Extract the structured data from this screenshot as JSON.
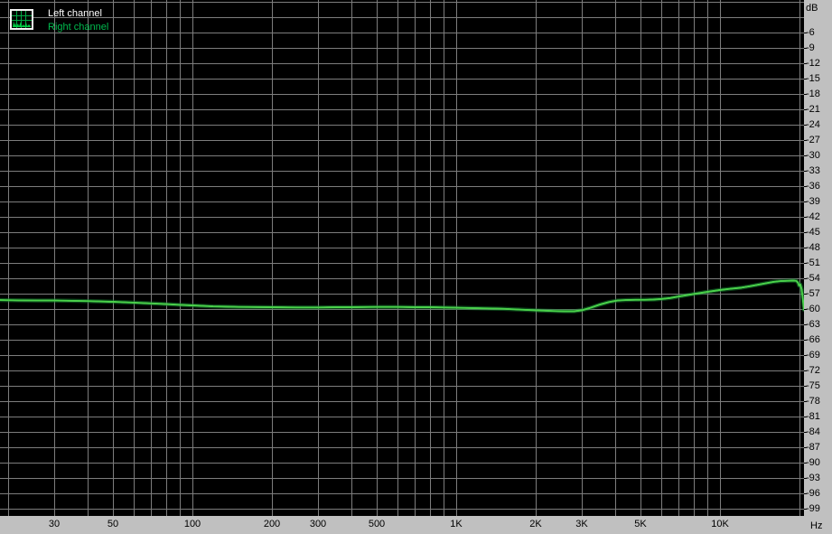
{
  "legend": {
    "items": [
      {
        "label": "Left channel",
        "color": "#ffffff"
      },
      {
        "label": "Right channel",
        "color": "#00bb4e"
      }
    ],
    "icon": "spectrum-thumbnail-icon"
  },
  "axes": {
    "y": {
      "unit_label": "dB",
      "tick_step_db": 3,
      "tick_labels": [
        "-6",
        "-9",
        "-12",
        "-15",
        "-18",
        "-21",
        "-24",
        "-27",
        "-30",
        "-33",
        "-36",
        "-39",
        "-42",
        "-45",
        "-48",
        "-51",
        "-54",
        "-57",
        "-60",
        "-63",
        "-66",
        "-69",
        "-72",
        "-75",
        "-78",
        "-81",
        "-84",
        "-87",
        "-90",
        "-93",
        "-96",
        "-99"
      ]
    },
    "x": {
      "unit_label": "Hz",
      "ticks": [
        {
          "f": 30,
          "label": "30"
        },
        {
          "f": 50,
          "label": "50"
        },
        {
          "f": 100,
          "label": "100"
        },
        {
          "f": 200,
          "label": "200"
        },
        {
          "f": 300,
          "label": "300"
        },
        {
          "f": 500,
          "label": "500"
        },
        {
          "f": 1000,
          "label": "1K"
        },
        {
          "f": 2000,
          "label": "2K"
        },
        {
          "f": 3000,
          "label": "3K"
        },
        {
          "f": 5000,
          "label": "5K"
        },
        {
          "f": 10000,
          "label": "10K"
        }
      ]
    }
  },
  "grid": {
    "v_freqs": [
      20,
      30,
      40,
      50,
      60,
      70,
      80,
      90,
      100,
      200,
      300,
      400,
      500,
      600,
      700,
      800,
      900,
      1000,
      2000,
      3000,
      4000,
      5000,
      6000,
      7000,
      8000,
      9000,
      10000,
      20000
    ],
    "h_lines_db_from": 0,
    "h_lines_db_to": -99,
    "color": "#7d7d7d"
  },
  "colors": {
    "plot_background": "#000000",
    "axis_strip": "#c0c0c0",
    "grid": "#7d7d7d",
    "label_text": "#000000",
    "left_channel": "#ffffff",
    "right_channel_core": "#4ad24a",
    "right_channel_glow": "#147d2d"
  },
  "chart_data": {
    "type": "line",
    "x_axis": {
      "label": "Hz",
      "scale": "log",
      "range": [
        20,
        20000
      ],
      "tick_labels": [
        "30",
        "50",
        "100",
        "200",
        "300",
        "500",
        "1K",
        "2K",
        "3K",
        "5K",
        "10K"
      ]
    },
    "y_axis": {
      "label": "dB",
      "range": [
        -100.5,
        0
      ],
      "tick_step": 3,
      "labeled_ticks": [
        -6,
        -99
      ],
      "grid": true
    },
    "legend_position": "top-left",
    "note": "Left and Right channel traces overlap almost exactly; the green Right channel is drawn on top of the white Left channel.",
    "series": [
      {
        "name": "Left channel",
        "color": "#ffffff",
        "points": [
          [
            18.7,
            -58.3
          ],
          [
            22,
            -58.35
          ],
          [
            26,
            -58.4
          ],
          [
            30,
            -58.4
          ],
          [
            35,
            -58.45
          ],
          [
            40,
            -58.5
          ],
          [
            50,
            -58.65
          ],
          [
            60,
            -58.8
          ],
          [
            70,
            -58.95
          ],
          [
            80,
            -59.1
          ],
          [
            90,
            -59.25
          ],
          [
            100,
            -59.35
          ],
          [
            120,
            -59.55
          ],
          [
            150,
            -59.65
          ],
          [
            200,
            -59.7
          ],
          [
            250,
            -59.75
          ],
          [
            300,
            -59.75
          ],
          [
            350,
            -59.7
          ],
          [
            400,
            -59.7
          ],
          [
            500,
            -59.65
          ],
          [
            600,
            -59.65
          ],
          [
            700,
            -59.7
          ],
          [
            800,
            -59.7
          ],
          [
            900,
            -59.75
          ],
          [
            1000,
            -59.8
          ],
          [
            1200,
            -59.9
          ],
          [
            1500,
            -60.0
          ],
          [
            1800,
            -60.2
          ],
          [
            2100,
            -60.35
          ],
          [
            2400,
            -60.45
          ],
          [
            2600,
            -60.5
          ],
          [
            2800,
            -60.5
          ],
          [
            3000,
            -60.3
          ],
          [
            3200,
            -59.9
          ],
          [
            3500,
            -59.2
          ],
          [
            3800,
            -58.7
          ],
          [
            4100,
            -58.4
          ],
          [
            4400,
            -58.3
          ],
          [
            4800,
            -58.25
          ],
          [
            5200,
            -58.25
          ],
          [
            5600,
            -58.2
          ],
          [
            6000,
            -58.1
          ],
          [
            6500,
            -57.9
          ],
          [
            7000,
            -57.6
          ],
          [
            7500,
            -57.35
          ],
          [
            8000,
            -57.1
          ],
          [
            9000,
            -56.7
          ],
          [
            10000,
            -56.35
          ],
          [
            11000,
            -56.1
          ],
          [
            12000,
            -55.9
          ],
          [
            13000,
            -55.6
          ],
          [
            14000,
            -55.3
          ],
          [
            15000,
            -55.0
          ],
          [
            16000,
            -54.75
          ],
          [
            17000,
            -54.6
          ],
          [
            18000,
            -54.55
          ],
          [
            19000,
            -54.5
          ],
          [
            19500,
            -54.55
          ],
          [
            19800,
            -54.9
          ],
          [
            20000,
            -55.5
          ],
          [
            20200,
            -55.25
          ],
          [
            20450,
            -56.2
          ],
          [
            20650,
            -58.0
          ],
          [
            20870,
            -60.2
          ]
        ]
      },
      {
        "name": "Right channel",
        "color": "#4ad24a",
        "points": [
          [
            18.7,
            -58.3
          ],
          [
            22,
            -58.35
          ],
          [
            26,
            -58.4
          ],
          [
            30,
            -58.4
          ],
          [
            35,
            -58.45
          ],
          [
            40,
            -58.5
          ],
          [
            50,
            -58.65
          ],
          [
            60,
            -58.8
          ],
          [
            70,
            -58.95
          ],
          [
            80,
            -59.1
          ],
          [
            90,
            -59.25
          ],
          [
            100,
            -59.35
          ],
          [
            120,
            -59.55
          ],
          [
            150,
            -59.65
          ],
          [
            200,
            -59.7
          ],
          [
            250,
            -59.75
          ],
          [
            300,
            -59.75
          ],
          [
            350,
            -59.7
          ],
          [
            400,
            -59.7
          ],
          [
            500,
            -59.65
          ],
          [
            600,
            -59.65
          ],
          [
            700,
            -59.7
          ],
          [
            800,
            -59.7
          ],
          [
            900,
            -59.75
          ],
          [
            1000,
            -59.8
          ],
          [
            1200,
            -59.9
          ],
          [
            1500,
            -60.0
          ],
          [
            1800,
            -60.2
          ],
          [
            2100,
            -60.35
          ],
          [
            2400,
            -60.45
          ],
          [
            2600,
            -60.5
          ],
          [
            2800,
            -60.5
          ],
          [
            3000,
            -60.3
          ],
          [
            3200,
            -59.9
          ],
          [
            3500,
            -59.2
          ],
          [
            3800,
            -58.7
          ],
          [
            4100,
            -58.4
          ],
          [
            4400,
            -58.3
          ],
          [
            4800,
            -58.25
          ],
          [
            5200,
            -58.25
          ],
          [
            5600,
            -58.2
          ],
          [
            6000,
            -58.1
          ],
          [
            6500,
            -57.9
          ],
          [
            7000,
            -57.6
          ],
          [
            7500,
            -57.35
          ],
          [
            8000,
            -57.1
          ],
          [
            9000,
            -56.7
          ],
          [
            10000,
            -56.35
          ],
          [
            11000,
            -56.1
          ],
          [
            12000,
            -55.9
          ],
          [
            13000,
            -55.6
          ],
          [
            14000,
            -55.3
          ],
          [
            15000,
            -55.0
          ],
          [
            16000,
            -54.75
          ],
          [
            17000,
            -54.6
          ],
          [
            18000,
            -54.55
          ],
          [
            19000,
            -54.5
          ],
          [
            19500,
            -54.55
          ],
          [
            19800,
            -54.9
          ],
          [
            20000,
            -55.5
          ],
          [
            20200,
            -55.25
          ],
          [
            20450,
            -56.2
          ],
          [
            20650,
            -58.0
          ],
          [
            20870,
            -60.2
          ]
        ]
      }
    ]
  }
}
